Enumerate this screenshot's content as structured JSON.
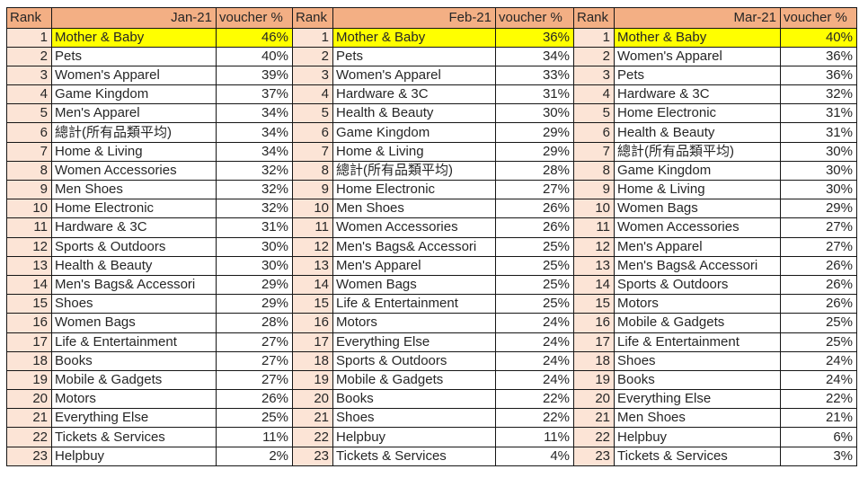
{
  "colors": {
    "header_bg": "#F3AF84",
    "rank_bg": "#FCE4D6",
    "highlight_bg": "#FFFF00",
    "grid": "#161616"
  },
  "table": {
    "groups": [
      {
        "rank_header": "Rank",
        "month_header": "Jan-21",
        "voucher_header": "voucher %",
        "rows": [
          {
            "rank": "1",
            "category": "Mother & Baby",
            "voucher": "46%",
            "highlight": true
          },
          {
            "rank": "2",
            "category": "Pets",
            "voucher": "40%"
          },
          {
            "rank": "3",
            "category": "Women's Apparel",
            "voucher": "39%"
          },
          {
            "rank": "4",
            "category": "Game Kingdom",
            "voucher": "37%"
          },
          {
            "rank": "5",
            "category": "Men's Apparel",
            "voucher": "34%"
          },
          {
            "rank": "6",
            "category": "總計(所有品類平均)",
            "voucher": "34%"
          },
          {
            "rank": "7",
            "category": "Home & Living",
            "voucher": "34%"
          },
          {
            "rank": "8",
            "category": "Women Accessories",
            "voucher": "32%"
          },
          {
            "rank": "9",
            "category": "Men Shoes",
            "voucher": "32%"
          },
          {
            "rank": "10",
            "category": "Home Electronic",
            "voucher": "32%"
          },
          {
            "rank": "11",
            "category": "Hardware & 3C",
            "voucher": "31%"
          },
          {
            "rank": "12",
            "category": "Sports & Outdoors",
            "voucher": "30%"
          },
          {
            "rank": "13",
            "category": "Health & Beauty",
            "voucher": "30%"
          },
          {
            "rank": "14",
            "category": "Men's Bags& Accessori",
            "voucher": "29%"
          },
          {
            "rank": "15",
            "category": "Shoes",
            "voucher": "29%"
          },
          {
            "rank": "16",
            "category": "Women Bags",
            "voucher": "28%"
          },
          {
            "rank": "17",
            "category": "Life & Entertainment",
            "voucher": "27%"
          },
          {
            "rank": "18",
            "category": "Books",
            "voucher": "27%"
          },
          {
            "rank": "19",
            "category": "Mobile & Gadgets",
            "voucher": "27%"
          },
          {
            "rank": "20",
            "category": "Motors",
            "voucher": "26%"
          },
          {
            "rank": "21",
            "category": "Everything Else",
            "voucher": "25%"
          },
          {
            "rank": "22",
            "category": "Tickets & Services",
            "voucher": "11%"
          },
          {
            "rank": "23",
            "category": "Helpbuy",
            "voucher": "2%"
          }
        ]
      },
      {
        "rank_header": "Rank",
        "month_header": "Feb-21",
        "voucher_header": "voucher %",
        "rows": [
          {
            "rank": "1",
            "category": "Mother & Baby",
            "voucher": "36%",
            "highlight": true
          },
          {
            "rank": "2",
            "category": "Pets",
            "voucher": "34%"
          },
          {
            "rank": "3",
            "category": "Women's Apparel",
            "voucher": "33%"
          },
          {
            "rank": "4",
            "category": "Hardware & 3C",
            "voucher": "31%"
          },
          {
            "rank": "5",
            "category": "Health & Beauty",
            "voucher": "30%"
          },
          {
            "rank": "6",
            "category": "Game Kingdom",
            "voucher": "29%"
          },
          {
            "rank": "7",
            "category": "Home & Living",
            "voucher": "29%"
          },
          {
            "rank": "8",
            "category": "總計(所有品類平均)",
            "voucher": "28%"
          },
          {
            "rank": "9",
            "category": "Home Electronic",
            "voucher": "27%"
          },
          {
            "rank": "10",
            "category": "Men Shoes",
            "voucher": "26%"
          },
          {
            "rank": "11",
            "category": "Women Accessories",
            "voucher": "26%"
          },
          {
            "rank": "12",
            "category": "Men's Bags& Accessori",
            "voucher": "25%"
          },
          {
            "rank": "13",
            "category": "Men's Apparel",
            "voucher": "25%"
          },
          {
            "rank": "14",
            "category": "Women Bags",
            "voucher": "25%"
          },
          {
            "rank": "15",
            "category": "Life & Entertainment",
            "voucher": "25%"
          },
          {
            "rank": "16",
            "category": "Motors",
            "voucher": "24%"
          },
          {
            "rank": "17",
            "category": "Everything Else",
            "voucher": "24%"
          },
          {
            "rank": "18",
            "category": "Sports & Outdoors",
            "voucher": "24%"
          },
          {
            "rank": "19",
            "category": "Mobile & Gadgets",
            "voucher": "24%"
          },
          {
            "rank": "20",
            "category": "Books",
            "voucher": "22%"
          },
          {
            "rank": "21",
            "category": "Shoes",
            "voucher": "22%"
          },
          {
            "rank": "22",
            "category": "Helpbuy",
            "voucher": "11%"
          },
          {
            "rank": "23",
            "category": "Tickets & Services",
            "voucher": "4%"
          }
        ]
      },
      {
        "rank_header": "Rank",
        "month_header": "Mar-21",
        "voucher_header": "voucher %",
        "rows": [
          {
            "rank": "1",
            "category": "Mother & Baby",
            "voucher": "40%",
            "highlight": true
          },
          {
            "rank": "2",
            "category": "Women's Apparel",
            "voucher": "36%"
          },
          {
            "rank": "3",
            "category": "Pets",
            "voucher": "36%"
          },
          {
            "rank": "4",
            "category": "Hardware & 3C",
            "voucher": "32%"
          },
          {
            "rank": "5",
            "category": "Home Electronic",
            "voucher": "31%"
          },
          {
            "rank": "6",
            "category": "Health & Beauty",
            "voucher": "31%"
          },
          {
            "rank": "7",
            "category": "總計(所有品類平均)",
            "voucher": "30%"
          },
          {
            "rank": "8",
            "category": "Game Kingdom",
            "voucher": "30%"
          },
          {
            "rank": "9",
            "category": "Home & Living",
            "voucher": "30%"
          },
          {
            "rank": "10",
            "category": "Women Bags",
            "voucher": "29%"
          },
          {
            "rank": "11",
            "category": "Women Accessories",
            "voucher": "27%"
          },
          {
            "rank": "12",
            "category": "Men's Apparel",
            "voucher": "27%"
          },
          {
            "rank": "13",
            "category": "Men's Bags& Accessori",
            "voucher": "26%"
          },
          {
            "rank": "14",
            "category": "Sports & Outdoors",
            "voucher": "26%"
          },
          {
            "rank": "15",
            "category": "Motors",
            "voucher": "26%"
          },
          {
            "rank": "16",
            "category": "Mobile & Gadgets",
            "voucher": "25%"
          },
          {
            "rank": "17",
            "category": "Life & Entertainment",
            "voucher": "25%"
          },
          {
            "rank": "18",
            "category": "Shoes",
            "voucher": "24%"
          },
          {
            "rank": "19",
            "category": "Books",
            "voucher": "24%"
          },
          {
            "rank": "20",
            "category": "Everything Else",
            "voucher": "22%"
          },
          {
            "rank": "21",
            "category": "Men Shoes",
            "voucher": "21%"
          },
          {
            "rank": "22",
            "category": "Helpbuy",
            "voucher": "6%"
          },
          {
            "rank": "23",
            "category": "Tickets & Services",
            "voucher": "3%"
          }
        ]
      }
    ]
  }
}
